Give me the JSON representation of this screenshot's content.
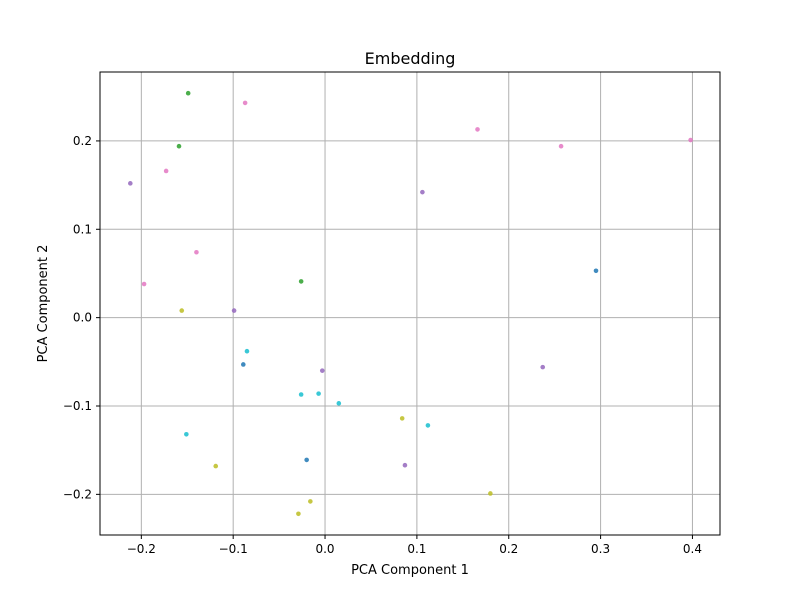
{
  "chart_data": {
    "type": "scatter",
    "title": "Embedding",
    "xlabel": "PCA Component 1",
    "ylabel": "PCA Component 2",
    "xlim": [
      -0.245,
      0.43
    ],
    "ylim": [
      -0.246,
      0.278
    ],
    "grid": true,
    "xticks": [
      -0.2,
      -0.1,
      0.0,
      0.1,
      0.2,
      0.3,
      0.4
    ],
    "xtick_labels": [
      "−0.2",
      "−0.1",
      "0.0",
      "0.1",
      "0.2",
      "0.3",
      "0.4"
    ],
    "yticks": [
      -0.2,
      -0.1,
      0.0,
      0.1,
      0.2
    ],
    "ytick_labels": [
      "−0.2",
      "−0.1",
      "0.0",
      "0.1",
      "0.2"
    ],
    "points": [
      {
        "x": -0.149,
        "y": 0.254,
        "color": "#2ca02c"
      },
      {
        "x": -0.159,
        "y": 0.194,
        "color": "#2ca02c"
      },
      {
        "x": -0.026,
        "y": 0.041,
        "color": "#2ca02c"
      },
      {
        "x": -0.087,
        "y": 0.243,
        "color": "#e377c2"
      },
      {
        "x": -0.173,
        "y": 0.166,
        "color": "#e377c2"
      },
      {
        "x": -0.14,
        "y": 0.074,
        "color": "#e377c2"
      },
      {
        "x": -0.197,
        "y": 0.038,
        "color": "#e377c2"
      },
      {
        "x": 0.166,
        "y": 0.213,
        "color": "#e377c2"
      },
      {
        "x": 0.257,
        "y": 0.194,
        "color": "#e377c2"
      },
      {
        "x": 0.398,
        "y": 0.201,
        "color": "#e377c2"
      },
      {
        "x": -0.212,
        "y": 0.152,
        "color": "#9467bd"
      },
      {
        "x": 0.106,
        "y": 0.142,
        "color": "#9467bd"
      },
      {
        "x": -0.099,
        "y": 0.008,
        "color": "#9467bd"
      },
      {
        "x": -0.003,
        "y": -0.06,
        "color": "#9467bd"
      },
      {
        "x": 0.237,
        "y": -0.056,
        "color": "#9467bd"
      },
      {
        "x": 0.087,
        "y": -0.167,
        "color": "#9467bd"
      },
      {
        "x": 0.295,
        "y": 0.053,
        "color": "#1f77b4"
      },
      {
        "x": -0.089,
        "y": -0.053,
        "color": "#1f77b4"
      },
      {
        "x": -0.02,
        "y": -0.161,
        "color": "#1f77b4"
      },
      {
        "x": -0.156,
        "y": 0.008,
        "color": "#bcbd22"
      },
      {
        "x": 0.084,
        "y": -0.114,
        "color": "#bcbd22"
      },
      {
        "x": -0.119,
        "y": -0.168,
        "color": "#bcbd22"
      },
      {
        "x": 0.18,
        "y": -0.199,
        "color": "#bcbd22"
      },
      {
        "x": -0.016,
        "y": -0.208,
        "color": "#bcbd22"
      },
      {
        "x": -0.029,
        "y": -0.222,
        "color": "#bcbd22"
      },
      {
        "x": -0.085,
        "y": -0.038,
        "color": "#17becf"
      },
      {
        "x": -0.026,
        "y": -0.087,
        "color": "#17becf"
      },
      {
        "x": -0.007,
        "y": -0.086,
        "color": "#17becf"
      },
      {
        "x": 0.015,
        "y": -0.097,
        "color": "#17becf"
      },
      {
        "x": 0.112,
        "y": -0.122,
        "color": "#17becf"
      },
      {
        "x": -0.151,
        "y": -0.132,
        "color": "#17becf"
      }
    ]
  }
}
